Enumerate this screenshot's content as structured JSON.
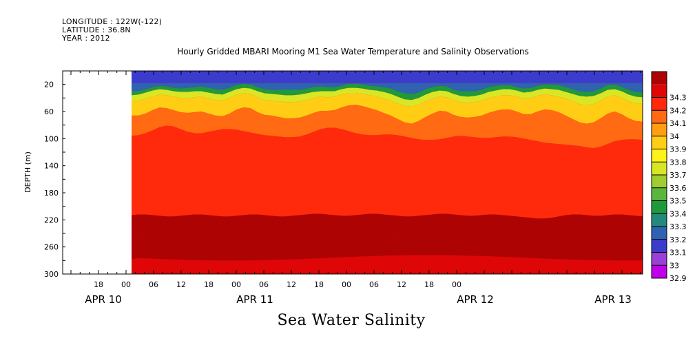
{
  "header": {
    "longitude": "LONGITUDE : 122W(-122)",
    "latitude": "LATITUDE : 36.8N",
    "year": "YEAR : 2012"
  },
  "chart_data": {
    "type": "heatmap",
    "title": "Hourly Gridded MBARI Mooring M1 Sea Water Temperature and Salinity Observations",
    "bottom_title": "Sea Water Salinity",
    "ylabel": "DEPTH (m)",
    "y_axis": {
      "ylim": [
        300,
        0
      ],
      "reversed": true,
      "ticks": [
        20,
        60,
        100,
        140,
        180,
        220,
        260,
        300
      ],
      "minor_step": 20
    },
    "x_axis": {
      "hour_ticks": [
        "18",
        "00",
        "06",
        "12",
        "18",
        "00",
        "06",
        "12",
        "18",
        "00",
        "06",
        "12",
        "18",
        "00"
      ],
      "day_labels": [
        "APR 10",
        "APR 11",
        "APR 12",
        "APR 13"
      ],
      "data_start": "APR 10 22:00",
      "data_end": "APR 13 23:00"
    },
    "colorbar": {
      "levels": [
        "32.9",
        "33",
        "33.1",
        "33.2",
        "33.3",
        "33.4",
        "33.5",
        "33.6",
        "33.7",
        "33.8",
        "33.9",
        "34",
        "34.1",
        "34.2",
        "34.3"
      ],
      "colors": [
        "#c000e8",
        "#9a3fd8",
        "#3c3ccc",
        "#2f62b0",
        "#23897c",
        "#1e9a3c",
        "#5ab73a",
        "#9fcc30",
        "#d8e626",
        "#fff21a",
        "#ffce14",
        "#ff9e10",
        "#ff6a12",
        "#ff2a0c",
        "#de0606",
        "#ad0303"
      ]
    },
    "series": [
      {
        "name": "33.1",
        "depth_m": [
          18,
          18,
          18,
          18,
          18,
          18,
          18,
          18,
          18,
          18,
          18,
          18,
          18,
          18,
          18,
          18,
          18,
          18,
          18,
          18,
          18,
          18,
          18,
          18,
          18,
          18,
          18,
          18,
          18,
          18,
          18,
          18,
          18,
          18,
          18,
          18,
          18,
          18,
          18,
          18,
          18,
          18,
          18,
          18,
          18,
          18,
          18,
          18,
          18,
          18,
          18,
          18,
          18,
          18,
          18,
          18,
          18,
          18,
          18,
          18,
          18,
          18,
          18,
          18,
          18,
          18,
          18,
          18,
          18,
          18,
          18,
          18,
          18,
          18
        ]
      },
      {
        "name": "33.4",
        "depth_m": [
          30,
          30,
          27,
          24,
          22,
          23,
          25,
          26,
          25,
          24,
          23,
          25,
          27,
          28,
          25,
          21,
          19,
          20,
          24,
          27,
          28,
          28,
          28,
          28,
          28,
          26,
          24,
          23,
          24,
          24,
          22,
          19,
          19,
          20,
          22,
          23,
          24,
          26,
          30,
          33,
          34,
          32,
          27,
          24,
          22,
          23,
          28,
          30,
          30,
          30,
          28,
          24,
          22,
          21,
          21,
          24,
          26,
          25,
          22,
          20,
          20,
          21,
          24,
          27,
          30,
          31,
          30,
          26,
          21,
          20,
          24,
          28,
          31,
          32
        ]
      },
      {
        "name": "33.6",
        "depth_m": [
          36,
          35,
          32,
          29,
          27,
          28,
          30,
          31,
          31,
          30,
          30,
          32,
          34,
          35,
          31,
          27,
          25,
          26,
          30,
          33,
          34,
          35,
          36,
          36,
          35,
          33,
          31,
          30,
          30,
          30,
          27,
          25,
          25,
          26,
          28,
          29,
          31,
          34,
          38,
          42,
          43,
          40,
          35,
          31,
          29,
          30,
          34,
          37,
          38,
          37,
          35,
          31,
          29,
          27,
          27,
          29,
          32,
          31,
          28,
          26,
          27,
          28,
          31,
          34,
          37,
          38,
          37,
          33,
          28,
          27,
          30,
          35,
          38,
          39
        ]
      },
      {
        "name": "33.8",
        "depth_m": [
          45,
          44,
          41,
          38,
          35,
          36,
          38,
          40,
          40,
          39,
          38,
          41,
          43,
          44,
          40,
          35,
          33,
          34,
          39,
          43,
          44,
          45,
          46,
          46,
          45,
          43,
          40,
          38,
          39,
          38,
          35,
          33,
          33,
          34,
          36,
          38,
          41,
          44,
          48,
          52,
          53,
          50,
          45,
          41,
          38,
          39,
          43,
          46,
          47,
          46,
          44,
          40,
          38,
          36,
          36,
          38,
          41,
          40,
          37,
          35,
          36,
          38,
          41,
          45,
          49,
          51,
          49,
          44,
          38,
          36,
          40,
          45,
          48,
          49
        ]
      },
      {
        "name": "34.0",
        "depth_m": [
          66,
          66,
          63,
          58,
          54,
          55,
          58,
          61,
          62,
          61,
          60,
          63,
          66,
          67,
          63,
          57,
          54,
          55,
          61,
          65,
          66,
          68,
          70,
          70,
          69,
          66,
          62,
          59,
          59,
          58,
          54,
          51,
          50,
          52,
          55,
          58,
          62,
          66,
          71,
          76,
          78,
          74,
          68,
          63,
          59,
          60,
          65,
          68,
          69,
          68,
          66,
          62,
          59,
          57,
          57,
          60,
          64,
          64,
          60,
          57,
          58,
          61,
          66,
          71,
          76,
          78,
          76,
          70,
          63,
          60,
          64,
          70,
          74,
          75
        ]
      },
      {
        "name": "34.1",
        "depth_m": [
          96,
          95,
          92,
          88,
          83,
          81,
          82,
          86,
          90,
          92,
          92,
          90,
          88,
          86,
          86,
          87,
          89,
          91,
          93,
          95,
          96,
          97,
          98,
          98,
          97,
          94,
          90,
          86,
          84,
          84,
          86,
          89,
          92,
          94,
          95,
          95,
          94,
          94,
          95,
          97,
          99,
          101,
          102,
          102,
          101,
          99,
          97,
          96,
          97,
          98,
          99,
          99,
          98,
          97,
          97,
          98,
          100,
          102,
          104,
          106,
          107,
          108,
          109,
          110,
          111,
          113,
          114,
          112,
          108,
          104,
          102,
          101,
          101,
          102
        ]
      },
      {
        "name": "34.2",
        "depth_m": [
          213,
          212,
          212,
          213,
          214,
          215,
          215,
          214,
          213,
          212,
          212,
          213,
          214,
          215,
          215,
          214,
          213,
          212,
          212,
          213,
          214,
          215,
          215,
          214,
          213,
          212,
          211,
          211,
          212,
          213,
          214,
          214,
          213,
          212,
          211,
          211,
          212,
          213,
          214,
          215,
          215,
          214,
          213,
          212,
          211,
          211,
          212,
          213,
          214,
          214,
          213,
          212,
          212,
          213,
          214,
          215,
          216,
          217,
          218,
          218,
          217,
          215,
          213,
          212,
          212,
          213,
          214,
          214,
          213,
          212,
          212,
          213,
          214,
          215
        ]
      },
      {
        "name": "34.3",
        "depth_m": [
          244,
          243,
          242,
          241,
          240,
          240,
          241,
          242,
          243,
          244,
          245,
          245,
          244,
          244,
          245,
          246,
          247,
          247,
          246,
          245,
          244,
          243,
          243,
          244,
          245,
          246,
          246,
          245,
          244,
          243,
          243,
          244,
          245,
          246,
          247,
          247,
          246,
          245,
          244,
          243,
          243,
          244,
          245,
          246,
          247,
          247,
          246,
          245,
          244,
          243,
          242,
          242,
          243,
          244,
          246,
          247,
          248,
          248,
          247,
          246,
          244,
          243,
          242,
          241,
          240,
          239,
          239,
          240,
          241,
          242,
          243,
          244,
          245,
          246
        ]
      }
    ]
  }
}
